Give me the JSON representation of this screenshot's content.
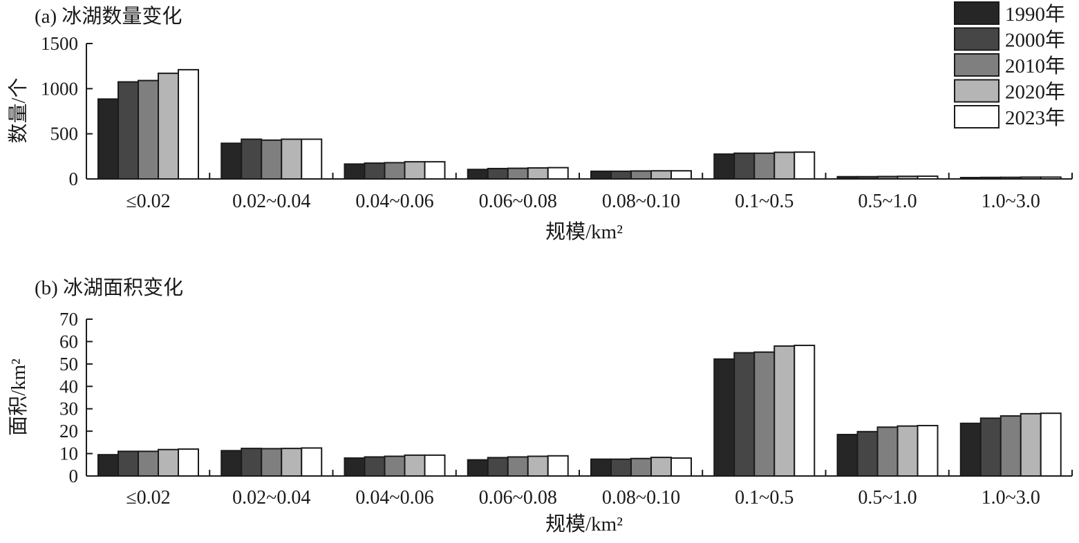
{
  "colors": {
    "1990年": "#262626",
    "2000年": "#464646",
    "2010年": "#7f7f7f",
    "2020年": "#b5b5b5",
    "2023年": "#ffffff",
    "axis": "#1a1a1a"
  },
  "legend": {
    "position": "top-right",
    "entries": [
      "1990年",
      "2000年",
      "2010年",
      "2020年",
      "2023年"
    ]
  },
  "chart_data": [
    {
      "type": "bar",
      "title": "(a) 冰湖数量变化",
      "xlabel": "规模/km²",
      "ylabel": "数量/个",
      "ylim": [
        0,
        1500
      ],
      "yticks": [
        0,
        500,
        1000,
        1500
      ],
      "categories": [
        "≤0.02",
        "0.02~0.04",
        "0.04~0.06",
        "0.06~0.08",
        "0.08~0.10",
        "0.1~0.5",
        "0.5~1.0",
        "1.0~3.0"
      ],
      "series": [
        {
          "name": "1990年",
          "values": [
            885,
            395,
            165,
            105,
            85,
            275,
            25,
            15
          ]
        },
        {
          "name": "2000年",
          "values": [
            1075,
            440,
            175,
            115,
            85,
            285,
            25,
            17
          ]
        },
        {
          "name": "2010年",
          "values": [
            1090,
            430,
            180,
            118,
            88,
            285,
            27,
            18
          ]
        },
        {
          "name": "2020年",
          "values": [
            1170,
            440,
            190,
            122,
            90,
            295,
            29,
            20
          ]
        },
        {
          "name": "2023年",
          "values": [
            1210,
            440,
            190,
            125,
            90,
            297,
            30,
            20
          ]
        }
      ]
    },
    {
      "type": "bar",
      "title": "(b) 冰湖面积变化",
      "xlabel": "规模/km²",
      "ylabel": "面积/km²",
      "ylim": [
        0,
        70
      ],
      "yticks": [
        0,
        10,
        20,
        30,
        40,
        50,
        60,
        70
      ],
      "categories": [
        "≤0.02",
        "0.02~0.04",
        "0.04~0.06",
        "0.06~0.08",
        "0.08~0.10",
        "0.1~0.5",
        "0.5~1.0",
        "1.0~3.0"
      ],
      "series": [
        {
          "name": "1990年",
          "values": [
            9.5,
            11.3,
            8.0,
            7.2,
            7.5,
            52.2,
            18.5,
            23.5
          ]
        },
        {
          "name": "2000年",
          "values": [
            11.0,
            12.3,
            8.5,
            8.2,
            7.5,
            55.0,
            19.8,
            25.8
          ]
        },
        {
          "name": "2010年",
          "values": [
            11.0,
            12.2,
            8.8,
            8.5,
            7.8,
            55.3,
            21.8,
            26.8
          ]
        },
        {
          "name": "2020年",
          "values": [
            11.8,
            12.3,
            9.3,
            8.8,
            8.3,
            58.0,
            22.3,
            27.8
          ]
        },
        {
          "name": "2023年",
          "values": [
            12.0,
            12.5,
            9.3,
            9.0,
            8.0,
            58.3,
            22.5,
            28.0
          ]
        }
      ]
    }
  ]
}
